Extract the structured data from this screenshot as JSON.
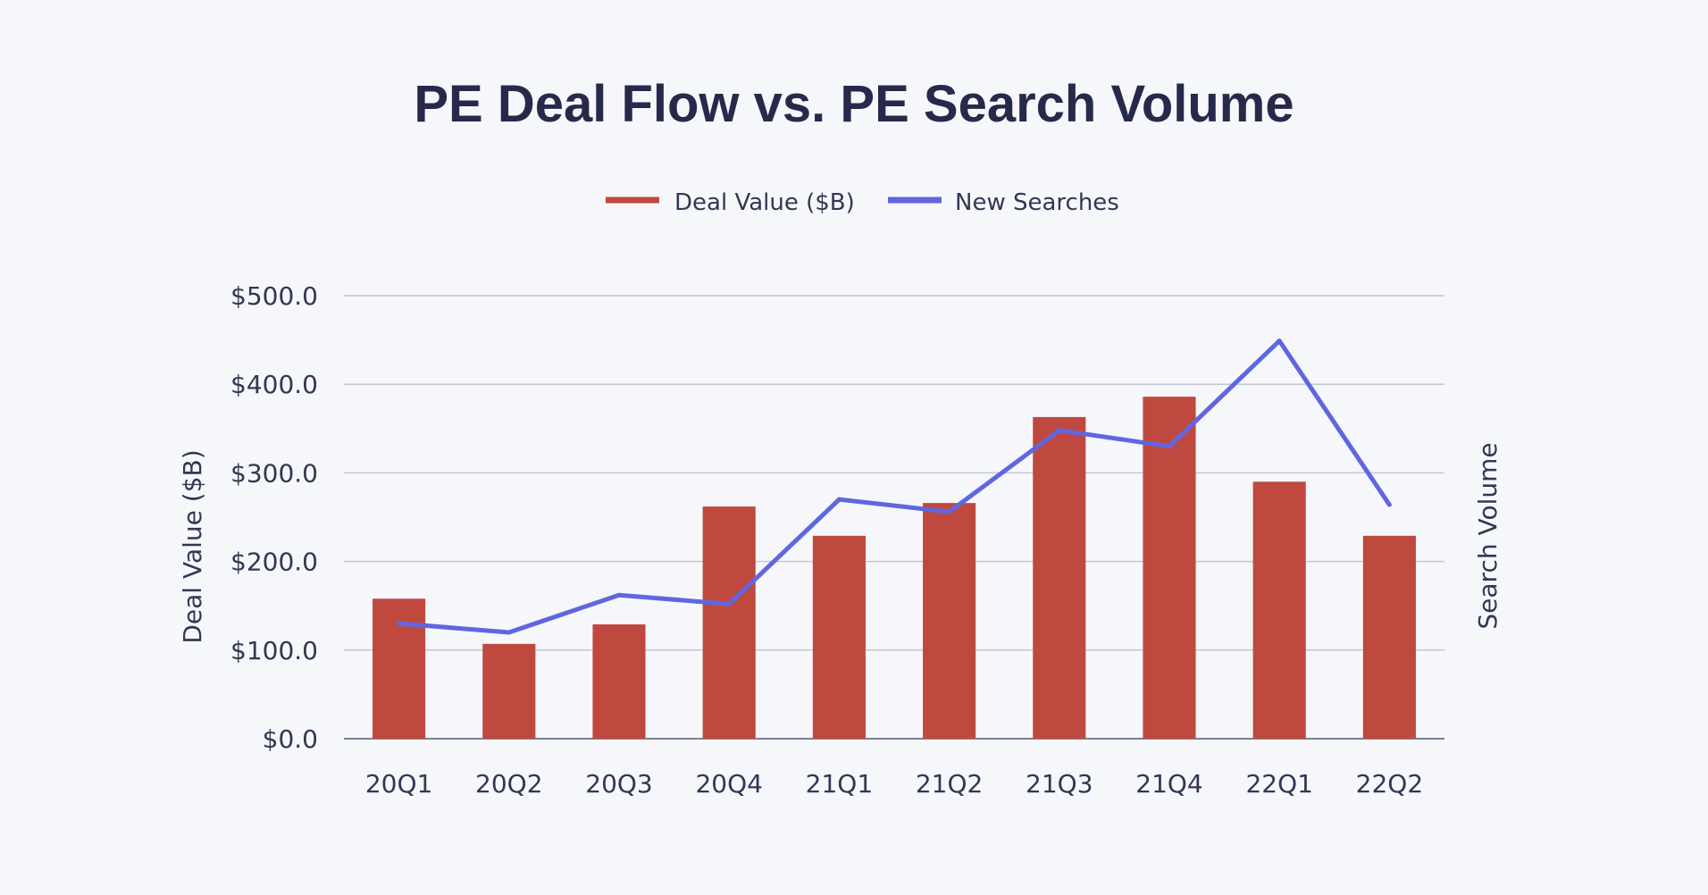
{
  "chart_data": {
    "type": "bar",
    "title": "PE Deal Flow vs. PE Search Volume",
    "categories": [
      "20Q1",
      "20Q2",
      "20Q3",
      "20Q4",
      "21Q1",
      "21Q2",
      "21Q3",
      "21Q4",
      "22Q1",
      "22Q2"
    ],
    "ylabel": "Deal Value ($B)",
    "y2label": "Search Volume",
    "ylim": [
      0,
      500
    ],
    "yticks": [
      "$0.0",
      "$100.0",
      "$200.0",
      "$300.0",
      "$400.0",
      "$500.0"
    ],
    "y2_ticks_shown": false,
    "grid": true,
    "legend_position": "top-center",
    "series": [
      {
        "name": "Deal Value ($B)",
        "type": "bar",
        "axis": "left",
        "color": "#c0493f",
        "values": [
          158,
          107,
          129,
          262,
          229,
          266,
          363,
          386,
          290,
          229
        ]
      },
      {
        "name": "New Searches",
        "type": "line",
        "axis": "right",
        "color": "#6166e0",
        "values": [
          130,
          120,
          162,
          152,
          270,
          256,
          348,
          330,
          449,
          264
        ]
      }
    ]
  }
}
